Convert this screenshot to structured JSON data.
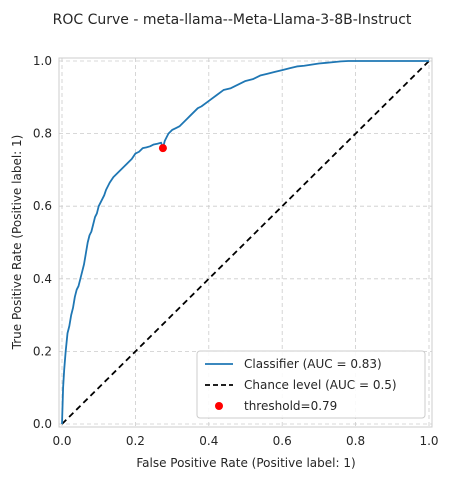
{
  "chart_data": {
    "type": "line",
    "title": "ROC Curve - meta-llama--Meta-Llama-3-8B-Instruct",
    "xlabel": "False Positive Rate (Positive label: 1)",
    "ylabel": "True Positive Rate (Positive label: 1)",
    "xlim": [
      0,
      1
    ],
    "ylim": [
      0,
      1
    ],
    "xticks": [
      "0.0",
      "0.2",
      "0.4",
      "0.6",
      "0.8",
      "1.0"
    ],
    "yticks": [
      "0.0",
      "0.2",
      "0.4",
      "0.6",
      "0.8",
      "1.0"
    ],
    "grid": true,
    "legend_position": "bottom-right",
    "series": [
      {
        "name": "Classifier (AUC = 0.83)",
        "color": "#1f77b4",
        "style": "solid",
        "x": [
          0.0,
          0.003,
          0.006,
          0.01,
          0.015,
          0.02,
          0.025,
          0.03,
          0.035,
          0.04,
          0.045,
          0.05,
          0.055,
          0.06,
          0.065,
          0.07,
          0.075,
          0.08,
          0.085,
          0.09,
          0.095,
          0.1,
          0.105,
          0.11,
          0.115,
          0.12,
          0.13,
          0.14,
          0.15,
          0.16,
          0.17,
          0.18,
          0.19,
          0.2,
          0.21,
          0.22,
          0.23,
          0.24,
          0.25,
          0.26,
          0.27,
          0.275,
          0.28,
          0.29,
          0.3,
          0.31,
          0.32,
          0.33,
          0.34,
          0.35,
          0.36,
          0.37,
          0.38,
          0.4,
          0.42,
          0.44,
          0.46,
          0.48,
          0.5,
          0.52,
          0.54,
          0.56,
          0.58,
          0.6,
          0.62,
          0.64,
          0.66,
          0.68,
          0.7,
          0.72,
          0.74,
          0.76,
          0.78,
          0.8,
          0.83,
          0.86,
          0.9,
          0.95,
          1.0
        ],
        "y": [
          0.0,
          0.1,
          0.15,
          0.2,
          0.25,
          0.27,
          0.3,
          0.32,
          0.35,
          0.37,
          0.38,
          0.4,
          0.42,
          0.44,
          0.47,
          0.5,
          0.52,
          0.53,
          0.55,
          0.57,
          0.58,
          0.6,
          0.61,
          0.62,
          0.63,
          0.645,
          0.665,
          0.68,
          0.69,
          0.7,
          0.71,
          0.72,
          0.73,
          0.745,
          0.75,
          0.76,
          0.762,
          0.765,
          0.77,
          0.772,
          0.775,
          0.76,
          0.78,
          0.8,
          0.81,
          0.815,
          0.82,
          0.83,
          0.84,
          0.85,
          0.86,
          0.87,
          0.875,
          0.89,
          0.905,
          0.92,
          0.925,
          0.935,
          0.945,
          0.95,
          0.96,
          0.965,
          0.97,
          0.975,
          0.98,
          0.985,
          0.987,
          0.99,
          0.993,
          0.995,
          0.997,
          0.999,
          1.0,
          1.0,
          1.0,
          1.0,
          1.0,
          1.0,
          1.0
        ]
      },
      {
        "name": "Chance level (AUC = 0.5)",
        "color": "#000000",
        "style": "dashed",
        "x": [
          0,
          1
        ],
        "y": [
          0,
          1
        ]
      }
    ],
    "points": [
      {
        "name": "threshold=0.79",
        "color": "#ff0000",
        "x": 0.275,
        "y": 0.76
      }
    ]
  }
}
